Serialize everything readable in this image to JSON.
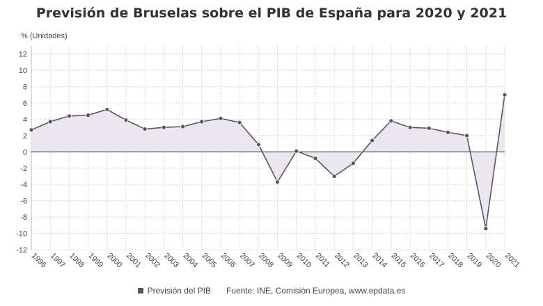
{
  "chart_data": {
    "type": "area",
    "title": "Previsión de Bruselas sobre el PIB de España para 2020 y 2021",
    "ylabel": "% (Unidades)",
    "xlabel": "",
    "ylim": [
      -12,
      13
    ],
    "yticks": [
      12,
      10,
      8,
      6,
      4,
      2,
      0,
      -2,
      -4,
      -6,
      -8,
      -10,
      -12
    ],
    "categories": [
      "1996",
      "1997",
      "1998",
      "1999",
      "2000",
      "2001",
      "2002",
      "2003",
      "2004",
      "2005",
      "2006",
      "2007",
      "2008",
      "2009",
      "2010",
      "2011",
      "2012",
      "2013",
      "2014",
      "2015",
      "2016",
      "2017",
      "2018",
      "2019",
      "2020",
      "2021"
    ],
    "series": [
      {
        "name": "Previsión del PIB",
        "color": "#5c5066",
        "fill": "#ebe7ee",
        "values": [
          2.7,
          3.7,
          4.4,
          4.5,
          5.2,
          3.9,
          2.8,
          3.0,
          3.1,
          3.7,
          4.1,
          3.6,
          0.9,
          -3.7,
          0.1,
          -0.8,
          -3.0,
          -1.4,
          1.4,
          3.8,
          3.0,
          2.9,
          2.4,
          2.0,
          -9.4,
          7.0
        ]
      }
    ],
    "grid": true,
    "legend_position": "bottom",
    "source": "Fuente: INE, Comisión Europea, www.epdata.es"
  }
}
